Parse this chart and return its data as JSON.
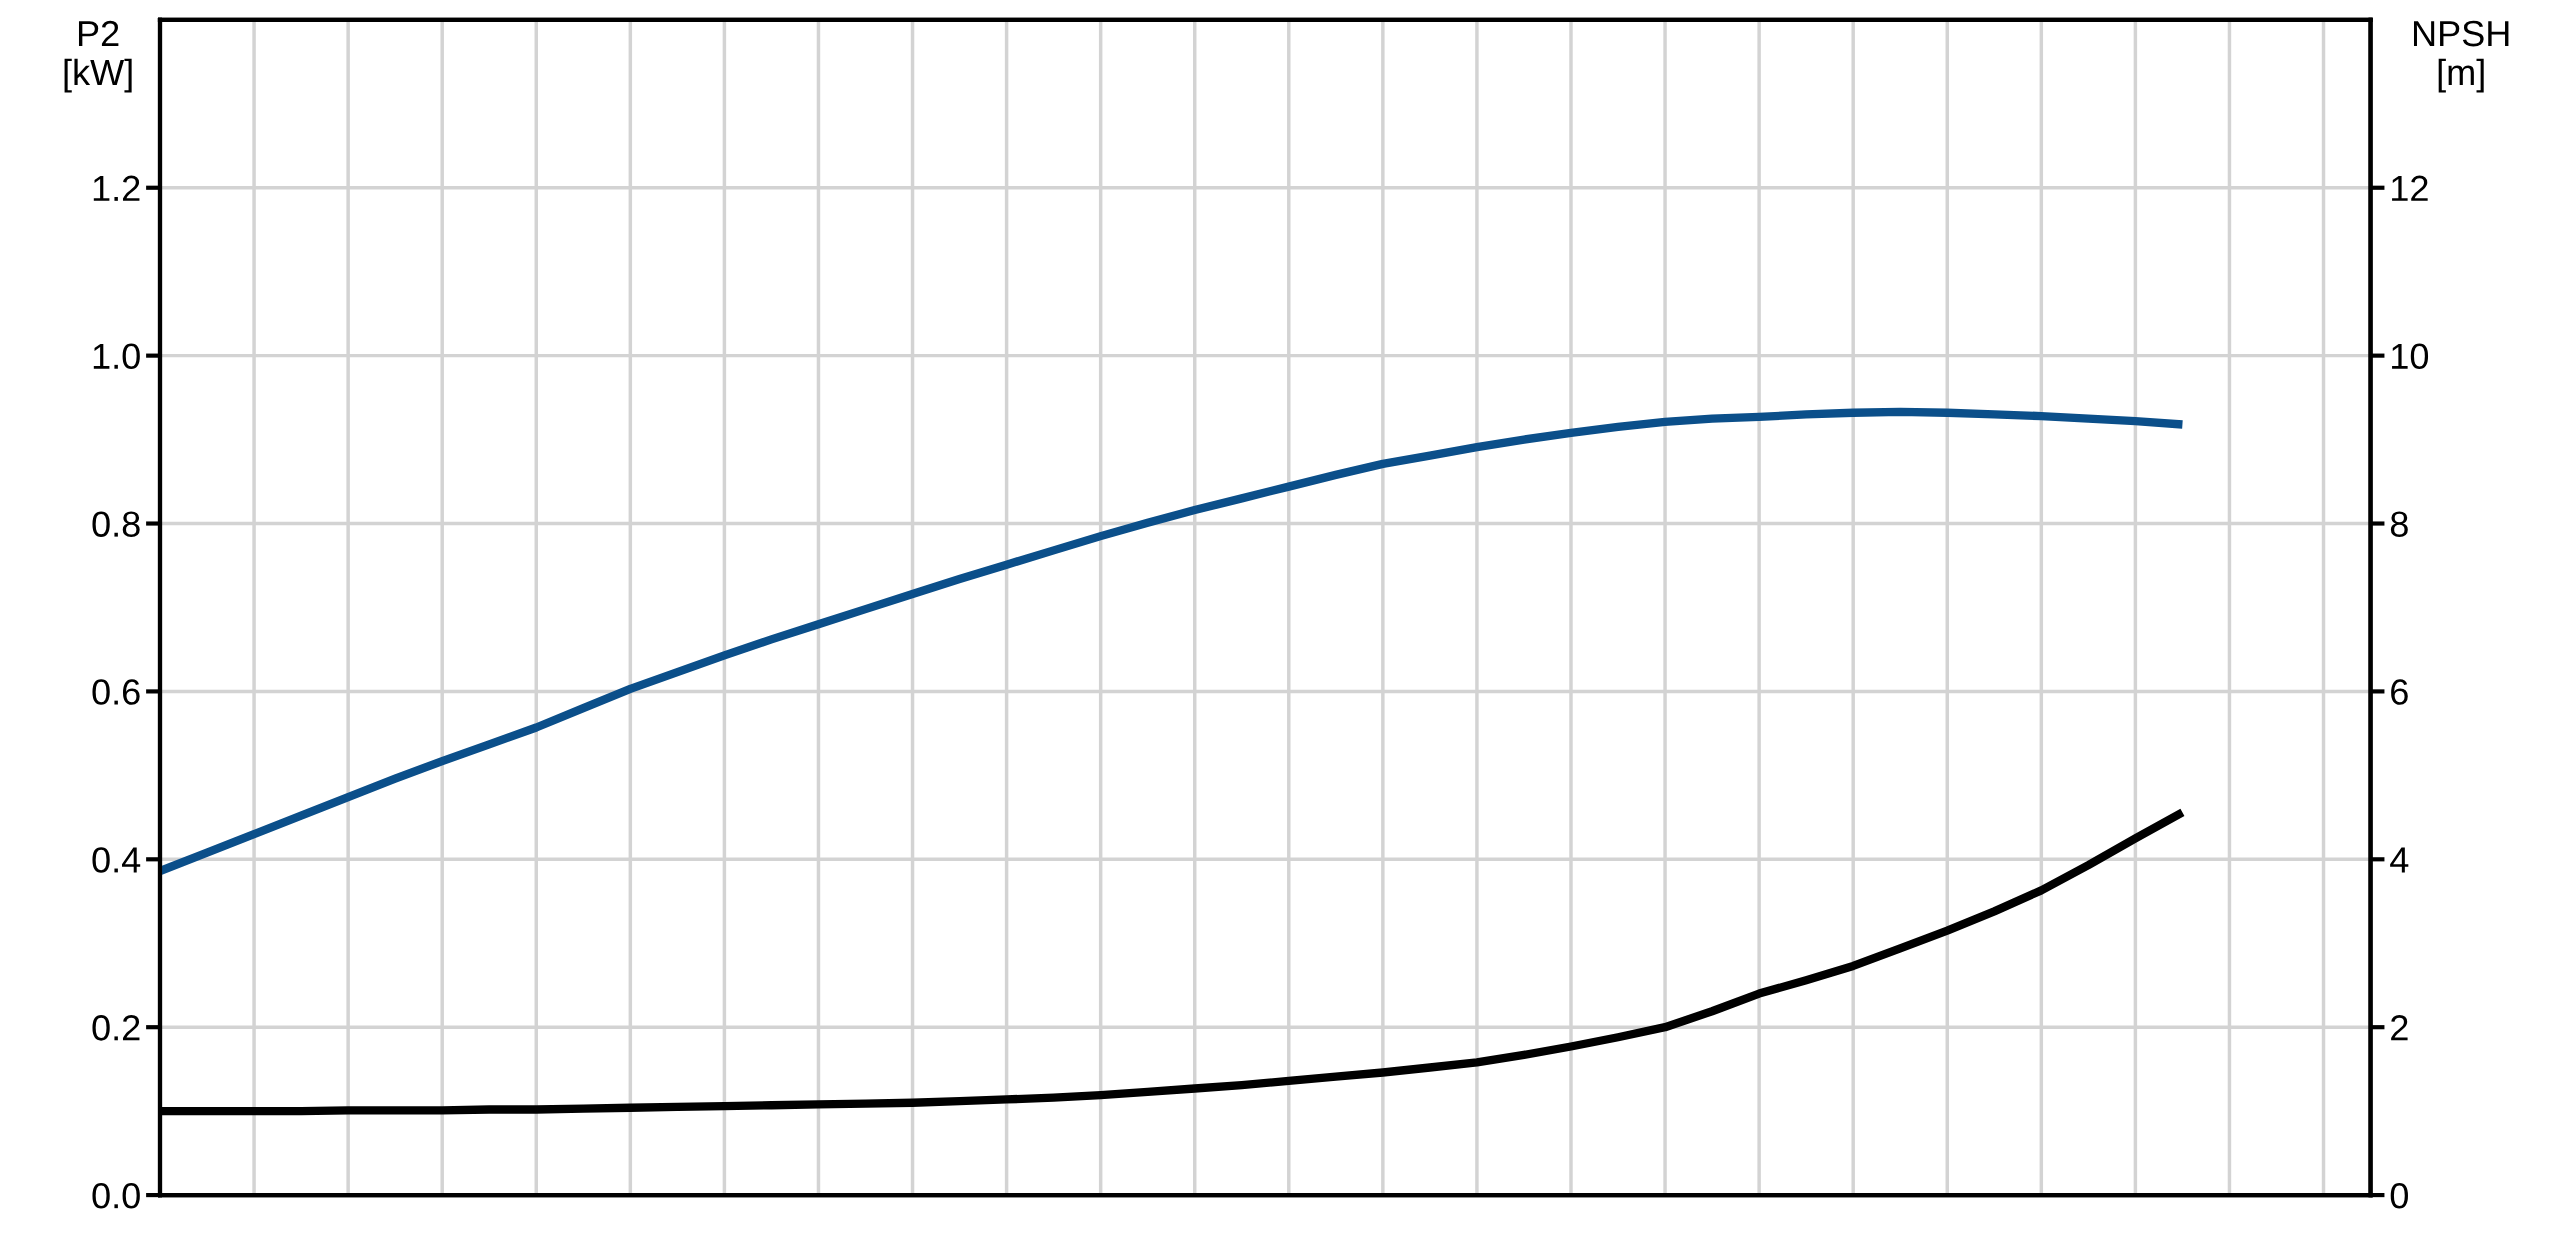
{
  "chart_data": {
    "type": "line",
    "ylabel": "P2\n[kW]",
    "y2label": "NPSH\n[m]",
    "categories": [
      null,
      null,
      null,
      null,
      null,
      null,
      null,
      null,
      null,
      null,
      null,
      null,
      null,
      null,
      null,
      null,
      null,
      null,
      null,
      null,
      null,
      null,
      null,
      null,
      null,
      null,
      null,
      null,
      null,
      null,
      null,
      null,
      null,
      null,
      null,
      null,
      null,
      null,
      null,
      null,
      null,
      null,
      null,
      null,
      null,
      null,
      null,
      null
    ],
    "series": [
      {
        "color": "#0b4f8a",
        "values": [
          0.386,
          0.408,
          0.43,
          0.452,
          0.474,
          0.496,
          0.517,
          0.537,
          0.557,
          0.58,
          0.603,
          0.623,
          0.643,
          0.662,
          0.68,
          0.698,
          0.716,
          0.734,
          0.751,
          0.768,
          0.785,
          0.801,
          0.816,
          0.83,
          0.844,
          0.858,
          0.871,
          0.881,
          0.891,
          0.9,
          0.908,
          0.915,
          0.921,
          0.925,
          0.927,
          0.93,
          0.932,
          0.933,
          0.932,
          0.93,
          0.928,
          0.925,
          0.922,
          0.918,
          null,
          null,
          null,
          null
        ]
      },
      {
        "color": "#000000",
        "axis": "y2",
        "values": [
          1.0,
          1.0,
          1.0,
          1.0,
          1.01,
          1.01,
          1.01,
          1.02,
          1.02,
          1.03,
          1.04,
          1.05,
          1.06,
          1.07,
          1.08,
          1.09,
          1.1,
          1.12,
          1.14,
          1.16,
          1.19,
          1.23,
          1.27,
          1.31,
          1.36,
          1.41,
          1.46,
          1.52,
          1.58,
          1.67,
          1.77,
          1.88,
          2.0,
          2.19,
          2.4,
          2.56,
          2.73,
          2.94,
          3.15,
          3.38,
          3.63,
          3.93,
          4.25,
          4.56,
          null,
          null,
          null,
          null
        ]
      }
    ],
    "ylim": [
      0,
      1.4
    ],
    "yticks": [
      {
        "value": 0,
        "label": "0.0"
      },
      {
        "value": 0.2,
        "label": "0.2"
      },
      {
        "value": 0.4,
        "label": "0.4"
      },
      {
        "value": 0.6,
        "label": "0.6"
      },
      {
        "value": 0.8,
        "label": "0.8"
      },
      {
        "value": 1.0,
        "label": "1.0"
      },
      {
        "value": 1.2,
        "label": "1.2"
      }
    ],
    "y2lim": [
      0,
      14
    ],
    "y2ticks": [
      0,
      2,
      4,
      6,
      8,
      10,
      12
    ],
    "grid": true,
    "marker": "none",
    "line_style": "solid"
  }
}
